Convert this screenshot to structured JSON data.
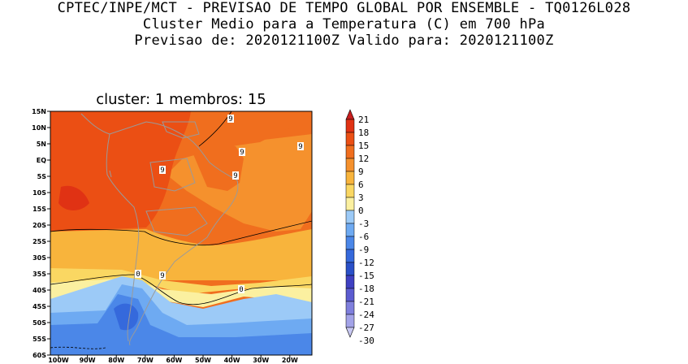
{
  "header": {
    "line1": "CPTEC/INPE/MCT - PREVISAO DE TEMPO GLOBAL POR ENSEMBLE - TQ0126L028",
    "line2": "Cluster Medio para a Temperatura (C) em 700 hPa",
    "line3": "Previsao de: 2020121100Z   Valido para: 2020121100Z"
  },
  "panel": {
    "title": "cluster: 1  membros: 15"
  },
  "map": {
    "lat_labels": [
      "15N",
      "10N",
      "5N",
      "EQ",
      "5S",
      "10S",
      "15S",
      "20S",
      "25S",
      "30S",
      "35S",
      "40S",
      "45S",
      "50S",
      "55S",
      "60S"
    ],
    "lon_labels": [
      "100W",
      "90W",
      "80W",
      "70W",
      "60W",
      "50W",
      "40W",
      "30W",
      "20W"
    ],
    "contour_labels": [
      "9",
      "9",
      "9",
      "9",
      "9",
      "0",
      "9",
      "0"
    ]
  },
  "colorbar": {
    "labels": [
      "21",
      "18",
      "15",
      "12",
      "9",
      "6",
      "3",
      "0",
      "-3",
      "-6",
      "-9",
      "-12",
      "-15",
      "-18",
      "-21",
      "-24",
      "-27",
      "-30"
    ],
    "colors": [
      "#c81e1e",
      "#e03214",
      "#eb4f14",
      "#f06e1e",
      "#f5912d",
      "#f8b43c",
      "#fad762",
      "#fbf0a0",
      "#9ccaf7",
      "#6eaaf2",
      "#4b87e8",
      "#3569dc",
      "#2a50c8",
      "#3f40c2",
      "#5c5cd0",
      "#7f7fdd",
      "#a3a3e8",
      "#c8c8f2"
    ]
  }
}
